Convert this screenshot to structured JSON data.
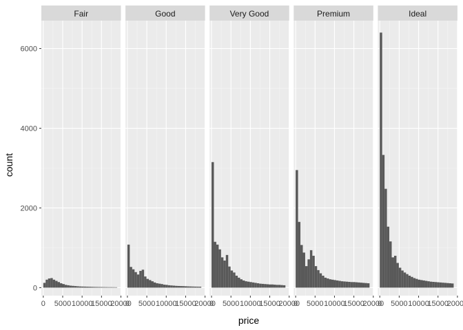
{
  "chart_data": {
    "type": "bar",
    "subtype": "faceted-histogram",
    "xlabel": "price",
    "ylabel": "count",
    "xlim": [
      -500,
      20000
    ],
    "ylim": [
      -200,
      6700
    ],
    "x_ticks": [
      0,
      5000,
      10000,
      15000,
      20000
    ],
    "x_tick_labels": [
      "0",
      "5000",
      "10000",
      "15000",
      "20000"
    ],
    "y_ticks": [
      0,
      2000,
      4000,
      6000
    ],
    "y_tick_labels": [
      "0",
      "2000",
      "4000",
      "6000"
    ],
    "bin_width": 614,
    "bin_starts": [
      0,
      614,
      1228,
      1842,
      2456,
      3070,
      3684,
      4298,
      4912,
      5526,
      6140,
      6754,
      7368,
      7982,
      8596,
      9210,
      9824,
      10438,
      11052,
      11666,
      12280,
      12894,
      13508,
      14122,
      14736,
      15350,
      15964,
      16578,
      17192,
      17806,
      18420
    ],
    "grid": true,
    "legend": "none",
    "colors": {
      "bar": "#595959",
      "panel": "#ebebeb",
      "strip": "#d9d9d9",
      "grid_major": "#ffffff"
    },
    "facets": [
      {
        "name": "Fair",
        "values": [
          120,
          200,
          230,
          240,
          200,
          170,
          140,
          110,
          90,
          70,
          60,
          50,
          45,
          40,
          35,
          30,
          28,
          26,
          24,
          22,
          20,
          18,
          17,
          16,
          15,
          14,
          13,
          12,
          12,
          11,
          10
        ]
      },
      {
        "name": "Good",
        "values": [
          1080,
          520,
          460,
          390,
          330,
          420,
          450,
          280,
          220,
          190,
          160,
          130,
          110,
          100,
          90,
          75,
          70,
          60,
          55,
          50,
          45,
          42,
          40,
          38,
          35,
          32,
          30,
          28,
          26,
          25,
          24
        ]
      },
      {
        "name": "Very Good",
        "values": [
          3150,
          1150,
          1080,
          960,
          760,
          680,
          820,
          530,
          430,
          380,
          300,
          250,
          210,
          180,
          160,
          150,
          140,
          130,
          120,
          110,
          100,
          95,
          90,
          85,
          80,
          80,
          75,
          70,
          70,
          65,
          60
        ]
      },
      {
        "name": "Premium",
        "values": [
          2950,
          1650,
          1070,
          880,
          540,
          710,
          940,
          800,
          540,
          440,
          360,
          300,
          250,
          230,
          210,
          200,
          190,
          180,
          170,
          160,
          155,
          150,
          145,
          140,
          140,
          135,
          130,
          125,
          120,
          115,
          110
        ]
      },
      {
        "name": "Ideal",
        "values": [
          6400,
          3330,
          2480,
          1530,
          1160,
          760,
          800,
          620,
          500,
          430,
          380,
          340,
          300,
          270,
          240,
          220,
          200,
          190,
          180,
          170,
          160,
          150,
          145,
          140,
          135,
          130,
          125,
          120,
          115,
          110,
          105
        ]
      }
    ]
  }
}
